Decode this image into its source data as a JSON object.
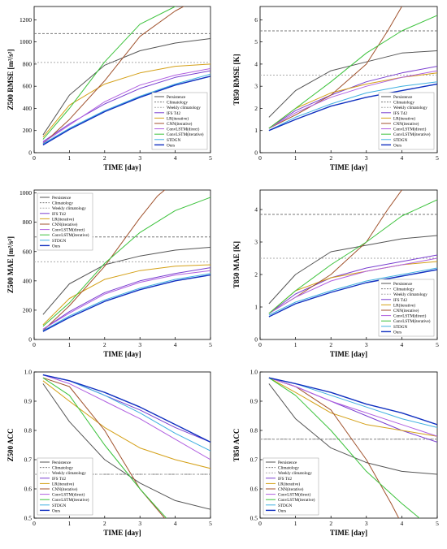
{
  "legend_names": [
    "Persistence",
    "Climatology",
    "Weekly climatology",
    "IFS T42",
    "LR(iterative)",
    "CNN(iterative)",
    "ConvLSTM(direct)",
    "ConvLSTM(iterative)",
    "STDGN",
    "Ours"
  ],
  "legend_colors": [
    "#555555",
    "#777777",
    "#aaaaaa",
    "#7a3fd0",
    "#d4a017",
    "#a0522d",
    "#b060e0",
    "#3cc23c",
    "#3fb0e0",
    "#1030c0"
  ],
  "legend_dashed": [
    false,
    true,
    true,
    false,
    false,
    false,
    false,
    false,
    false,
    false
  ],
  "chart_data": [
    {
      "type": "line",
      "ylabel": "Z500 RMSE [m²/s²]",
      "xlabel": "TIME [day]",
      "xlim": [
        0,
        5
      ],
      "ylim": [
        0,
        1320
      ],
      "xticks": [
        0,
        1,
        2,
        3,
        4,
        5
      ],
      "yticks": [
        0,
        200,
        400,
        600,
        800,
        1000,
        1200
      ],
      "legend_position": "bottom-right",
      "series": [
        {
          "x": [
            0.25,
            1,
            2,
            3,
            4,
            5
          ],
          "y": [
            160,
            520,
            790,
            920,
            990,
            1030
          ]
        },
        {
          "x": [
            0,
            5
          ],
          "y": [
            1075,
            1075
          ]
        },
        {
          "x": [
            0,
            5
          ],
          "y": [
            815,
            815
          ]
        },
        {
          "x": [
            0.25,
            1,
            2,
            3,
            4,
            5
          ],
          "y": [
            100,
            260,
            440,
            580,
            680,
            740
          ]
        },
        {
          "x": [
            0.25,
            1,
            2,
            3,
            4,
            5
          ],
          "y": [
            140,
            430,
            620,
            720,
            780,
            800
          ]
        },
        {
          "x": [
            0.25,
            1,
            2,
            3,
            4,
            4.3
          ],
          "y": [
            80,
            300,
            650,
            1050,
            1280,
            1330
          ]
        },
        {
          "x": [
            0.25,
            1,
            2,
            3,
            4,
            5
          ],
          "y": [
            90,
            250,
            460,
            610,
            700,
            760
          ]
        },
        {
          "x": [
            0.25,
            1,
            2,
            3,
            4,
            4.1
          ],
          "y": [
            120,
            400,
            820,
            1160,
            1320,
            1335
          ]
        },
        {
          "x": [
            0.25,
            1,
            2,
            3,
            4,
            5
          ],
          "y": [
            80,
            220,
            380,
            510,
            620,
            710
          ]
        },
        {
          "x": [
            0.25,
            1,
            2,
            3,
            4,
            5
          ],
          "y": [
            70,
            210,
            370,
            500,
            610,
            690
          ]
        }
      ]
    },
    {
      "type": "line",
      "ylabel": "T850 RMSE [K]",
      "xlabel": "TIME [day]",
      "xlim": [
        0,
        5
      ],
      "ylim": [
        0,
        6.6
      ],
      "xticks": [
        0,
        1,
        2,
        3,
        4,
        5
      ],
      "yticks": [
        0,
        1,
        2,
        3,
        4,
        5,
        6
      ],
      "legend_position": "bottom-right",
      "series": [
        {
          "x": [
            0.25,
            1,
            2,
            3,
            4,
            5
          ],
          "y": [
            1.6,
            2.8,
            3.7,
            4.1,
            4.5,
            4.6
          ]
        },
        {
          "x": [
            0,
            5
          ],
          "y": [
            5.5,
            5.5
          ]
        },
        {
          "x": [
            0,
            5
          ],
          "y": [
            3.5,
            3.5
          ]
        },
        {
          "x": [
            0.25,
            1,
            2,
            3,
            4,
            5
          ],
          "y": [
            1.1,
            1.9,
            2.6,
            3.2,
            3.6,
            3.9
          ]
        },
        {
          "x": [
            0.25,
            1,
            2,
            3,
            4,
            5
          ],
          "y": [
            1.1,
            2.0,
            2.7,
            3.1,
            3.4,
            3.6
          ]
        },
        {
          "x": [
            0.25,
            1,
            2,
            3,
            3.6,
            4.0
          ],
          "y": [
            1.1,
            1.7,
            2.6,
            4.0,
            5.5,
            6.6
          ]
        },
        {
          "x": [
            0.25,
            1,
            2,
            3,
            4,
            5
          ],
          "y": [
            1.1,
            1.8,
            2.5,
            3.0,
            3.4,
            3.7
          ]
        },
        {
          "x": [
            0.25,
            1,
            2,
            3,
            4,
            5
          ],
          "y": [
            1.1,
            2.0,
            3.2,
            4.5,
            5.5,
            6.2
          ]
        },
        {
          "x": [
            0.25,
            1,
            2,
            3,
            4,
            5
          ],
          "y": [
            1.0,
            1.6,
            2.2,
            2.7,
            3.0,
            3.2
          ]
        },
        {
          "x": [
            0.25,
            1,
            2,
            3,
            4,
            5
          ],
          "y": [
            1.0,
            1.5,
            2.1,
            2.5,
            2.8,
            3.1
          ]
        }
      ]
    },
    {
      "type": "line",
      "ylabel": "Z500 MAE [m²/s²]",
      "xlabel": "TIME [day]",
      "xlim": [
        0,
        5
      ],
      "ylim": [
        0,
        1020
      ],
      "xticks": [
        0,
        1,
        2,
        3,
        4,
        5
      ],
      "yticks": [
        0,
        200,
        400,
        600,
        800,
        1000
      ],
      "legend_position": "top-left",
      "series": [
        {
          "x": [
            0.25,
            1,
            2,
            3,
            4,
            5
          ],
          "y": [
            170,
            380,
            510,
            570,
            610,
            630
          ]
        },
        {
          "x": [
            0,
            5
          ],
          "y": [
            700,
            700
          ]
        },
        {
          "x": [
            0,
            5
          ],
          "y": [
            530,
            530
          ]
        },
        {
          "x": [
            0.25,
            1,
            2,
            3,
            4,
            5
          ],
          "y": [
            70,
            190,
            320,
            400,
            450,
            490
          ]
        },
        {
          "x": [
            0.25,
            1,
            2,
            3,
            4,
            5
          ],
          "y": [
            100,
            280,
            410,
            470,
            500,
            510
          ]
        },
        {
          "x": [
            0.25,
            1,
            2,
            3,
            3.5,
            3.7
          ],
          "y": [
            60,
            230,
            500,
            830,
            980,
            1020
          ]
        },
        {
          "x": [
            0.25,
            1,
            2,
            3,
            4,
            5
          ],
          "y": [
            70,
            180,
            310,
            390,
            440,
            470
          ]
        },
        {
          "x": [
            0.25,
            1,
            2,
            3,
            4,
            5
          ],
          "y": [
            90,
            250,
            520,
            730,
            880,
            970
          ]
        },
        {
          "x": [
            0.25,
            1,
            2,
            3,
            4,
            5
          ],
          "y": [
            60,
            160,
            270,
            350,
            410,
            450
          ]
        },
        {
          "x": [
            0.25,
            1,
            2,
            3,
            4,
            5
          ],
          "y": [
            55,
            150,
            260,
            340,
            400,
            440
          ]
        }
      ]
    },
    {
      "type": "line",
      "ylabel": "T850 MAE [K]",
      "xlabel": "TIME [day]",
      "xlim": [
        0,
        5
      ],
      "ylim": [
        0,
        4.6
      ],
      "xticks": [
        0,
        1,
        2,
        3,
        4,
        5
      ],
      "yticks": [
        0,
        1,
        2,
        3,
        4
      ],
      "legend_position": "bottom-right",
      "series": [
        {
          "x": [
            0.25,
            1,
            2,
            3,
            4,
            5
          ],
          "y": [
            1.1,
            2.0,
            2.7,
            2.9,
            3.1,
            3.2
          ]
        },
        {
          "x": [
            0,
            5
          ],
          "y": [
            3.85,
            3.85
          ]
        },
        {
          "x": [
            0,
            5
          ],
          "y": [
            2.5,
            2.5
          ]
        },
        {
          "x": [
            0.25,
            1,
            2,
            3,
            4,
            5
          ],
          "y": [
            0.8,
            1.4,
            1.9,
            2.2,
            2.4,
            2.6
          ]
        },
        {
          "x": [
            0.25,
            1,
            2,
            3,
            4,
            5
          ],
          "y": [
            0.8,
            1.5,
            1.9,
            2.1,
            2.3,
            2.4
          ]
        },
        {
          "x": [
            0.25,
            1,
            2,
            3,
            3.6,
            4.0
          ],
          "y": [
            0.8,
            1.3,
            2.0,
            3.0,
            4.0,
            4.6
          ]
        },
        {
          "x": [
            0.25,
            1,
            2,
            3,
            4,
            5
          ],
          "y": [
            0.8,
            1.3,
            1.8,
            2.1,
            2.3,
            2.5
          ]
        },
        {
          "x": [
            0.25,
            1,
            2,
            3,
            4,
            5
          ],
          "y": [
            0.8,
            1.5,
            2.3,
            3.0,
            3.8,
            4.3
          ]
        },
        {
          "x": [
            0.25,
            1,
            2,
            3,
            4,
            5
          ],
          "y": [
            0.75,
            1.15,
            1.5,
            1.8,
            2.0,
            2.2
          ]
        },
        {
          "x": [
            0.25,
            1,
            2,
            3,
            4,
            5
          ],
          "y": [
            0.7,
            1.1,
            1.45,
            1.75,
            1.95,
            2.15
          ]
        }
      ]
    },
    {
      "type": "line",
      "ylabel": "Z500 ACC",
      "xlabel": "TIME [day]",
      "xlim": [
        0,
        5
      ],
      "ylim": [
        0.5,
        1.0
      ],
      "xticks": [
        0,
        1,
        2,
        3,
        4,
        5
      ],
      "yticks": [
        0.5,
        0.6,
        0.7,
        0.8,
        0.9,
        1.0
      ],
      "legend_position": "bottom-left",
      "series": [
        {
          "x": [
            0.25,
            1,
            2,
            3,
            4,
            5
          ],
          "y": [
            0.96,
            0.83,
            0.7,
            0.62,
            0.56,
            0.53
          ]
        },
        {
          "x": [
            0,
            5
          ],
          "y": [
            0.65,
            0.65
          ]
        },
        {
          "x": [
            0,
            5
          ],
          "y": [
            0.65,
            0.65
          ]
        },
        {
          "x": [
            0.25,
            1,
            2,
            3,
            4,
            5
          ],
          "y": [
            0.99,
            0.97,
            0.92,
            0.87,
            0.81,
            0.76
          ]
        },
        {
          "x": [
            0.25,
            1,
            2,
            3,
            4,
            5
          ],
          "y": [
            0.97,
            0.9,
            0.81,
            0.74,
            0.7,
            0.67
          ]
        },
        {
          "x": [
            0.25,
            1,
            2,
            3,
            3.7,
            4.0
          ],
          "y": [
            0.98,
            0.95,
            0.8,
            0.6,
            0.5,
            0.48
          ]
        },
        {
          "x": [
            0.25,
            1,
            2,
            3,
            4,
            5
          ],
          "y": [
            0.99,
            0.96,
            0.9,
            0.84,
            0.77,
            0.7
          ]
        },
        {
          "x": [
            0.25,
            1,
            2,
            3,
            3.6,
            3.9
          ],
          "y": [
            0.98,
            0.92,
            0.75,
            0.6,
            0.52,
            0.48
          ]
        },
        {
          "x": [
            0.25,
            1,
            2,
            3,
            4,
            5
          ],
          "y": [
            0.99,
            0.97,
            0.92,
            0.86,
            0.79,
            0.73
          ]
        },
        {
          "x": [
            0.25,
            1,
            2,
            3,
            4,
            5
          ],
          "y": [
            0.99,
            0.97,
            0.93,
            0.88,
            0.82,
            0.76
          ]
        }
      ]
    },
    {
      "type": "line",
      "ylabel": "T850 ACC",
      "xlabel": "TIME [day]",
      "xlim": [
        0,
        5
      ],
      "ylim": [
        0.5,
        1.0
      ],
      "xticks": [
        0,
        1,
        2,
        3,
        4,
        5
      ],
      "yticks": [
        0.5,
        0.6,
        0.7,
        0.8,
        0.9,
        1.0
      ],
      "legend_position": "bottom-left",
      "series": [
        {
          "x": [
            0.25,
            1,
            2,
            3,
            4,
            5
          ],
          "y": [
            0.96,
            0.84,
            0.74,
            0.69,
            0.66,
            0.65
          ]
        },
        {
          "x": [
            0,
            5
          ],
          "y": [
            0.77,
            0.77
          ]
        },
        {
          "x": [
            0,
            5
          ],
          "y": [
            0.77,
            0.77
          ]
        },
        {
          "x": [
            0.25,
            1,
            2,
            3,
            4,
            5
          ],
          "y": [
            0.98,
            0.95,
            0.9,
            0.85,
            0.8,
            0.76
          ]
        },
        {
          "x": [
            0.25,
            1,
            2,
            3,
            4,
            5
          ],
          "y": [
            0.98,
            0.93,
            0.86,
            0.82,
            0.8,
            0.78
          ]
        },
        {
          "x": [
            0.25,
            1,
            2,
            3,
            3.7,
            4.0
          ],
          "y": [
            0.98,
            0.95,
            0.87,
            0.7,
            0.55,
            0.48
          ]
        },
        {
          "x": [
            0.25,
            1,
            2,
            3,
            4,
            5
          ],
          "y": [
            0.98,
            0.95,
            0.9,
            0.86,
            0.82,
            0.78
          ]
        },
        {
          "x": [
            0.25,
            1,
            2,
            3,
            4,
            4.7
          ],
          "y": [
            0.98,
            0.92,
            0.8,
            0.66,
            0.55,
            0.48
          ]
        },
        {
          "x": [
            0.25,
            1,
            2,
            3,
            4,
            5
          ],
          "y": [
            0.98,
            0.96,
            0.92,
            0.88,
            0.84,
            0.81
          ]
        },
        {
          "x": [
            0.25,
            1,
            2,
            3,
            4,
            5
          ],
          "y": [
            0.98,
            0.96,
            0.93,
            0.89,
            0.86,
            0.82
          ]
        }
      ]
    }
  ]
}
